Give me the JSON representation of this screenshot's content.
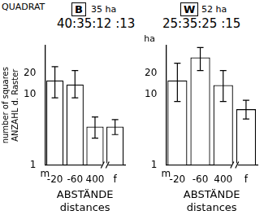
{
  "header": {
    "title": "QUADRAT"
  },
  "chart_data": [
    {
      "type": "bar",
      "title": "B",
      "subtitle": "35 ha",
      "annotation": "40:35:12 :13",
      "x_start_label": "m",
      "categories": [
        "-20",
        "-60",
        "400",
        "f"
      ],
      "values": [
        16,
        14,
        3.5,
        3.5
      ],
      "error_low": [
        9,
        9,
        2.4,
        2.7
      ],
      "error_high": [
        25,
        22,
        4.8,
        4.4
      ],
      "color": "#ffffff",
      "xlabel": [
        "ABSTÄNDE",
        "distances"
      ],
      "ylabel": [
        "number of squares",
        "ANZAHL d. Raster"
      ],
      "log": "y",
      "ylim": [
        1,
        50
      ],
      "yticks": [
        1,
        10,
        20
      ],
      "grid": false
    },
    {
      "type": "bar",
      "title": "W",
      "subtitle": "52 ha",
      "annotation": "25:35:25 :15",
      "x_start_label": "m",
      "y_unit_label": "ha",
      "categories": [
        "-20",
        "-60",
        "400",
        "f"
      ],
      "values": [
        16,
        34,
        13.7,
        6.2
      ],
      "error_low": [
        8,
        22,
        8,
        4.5
      ],
      "error_high": [
        28,
        47,
        22,
        8.3
      ],
      "color": "#ffffff",
      "xlabel": [
        "ABSTÄNDE",
        "distances"
      ],
      "log": "y",
      "ylim": [
        1,
        50
      ],
      "yticks": [
        1,
        10,
        20
      ],
      "grid": false
    }
  ]
}
